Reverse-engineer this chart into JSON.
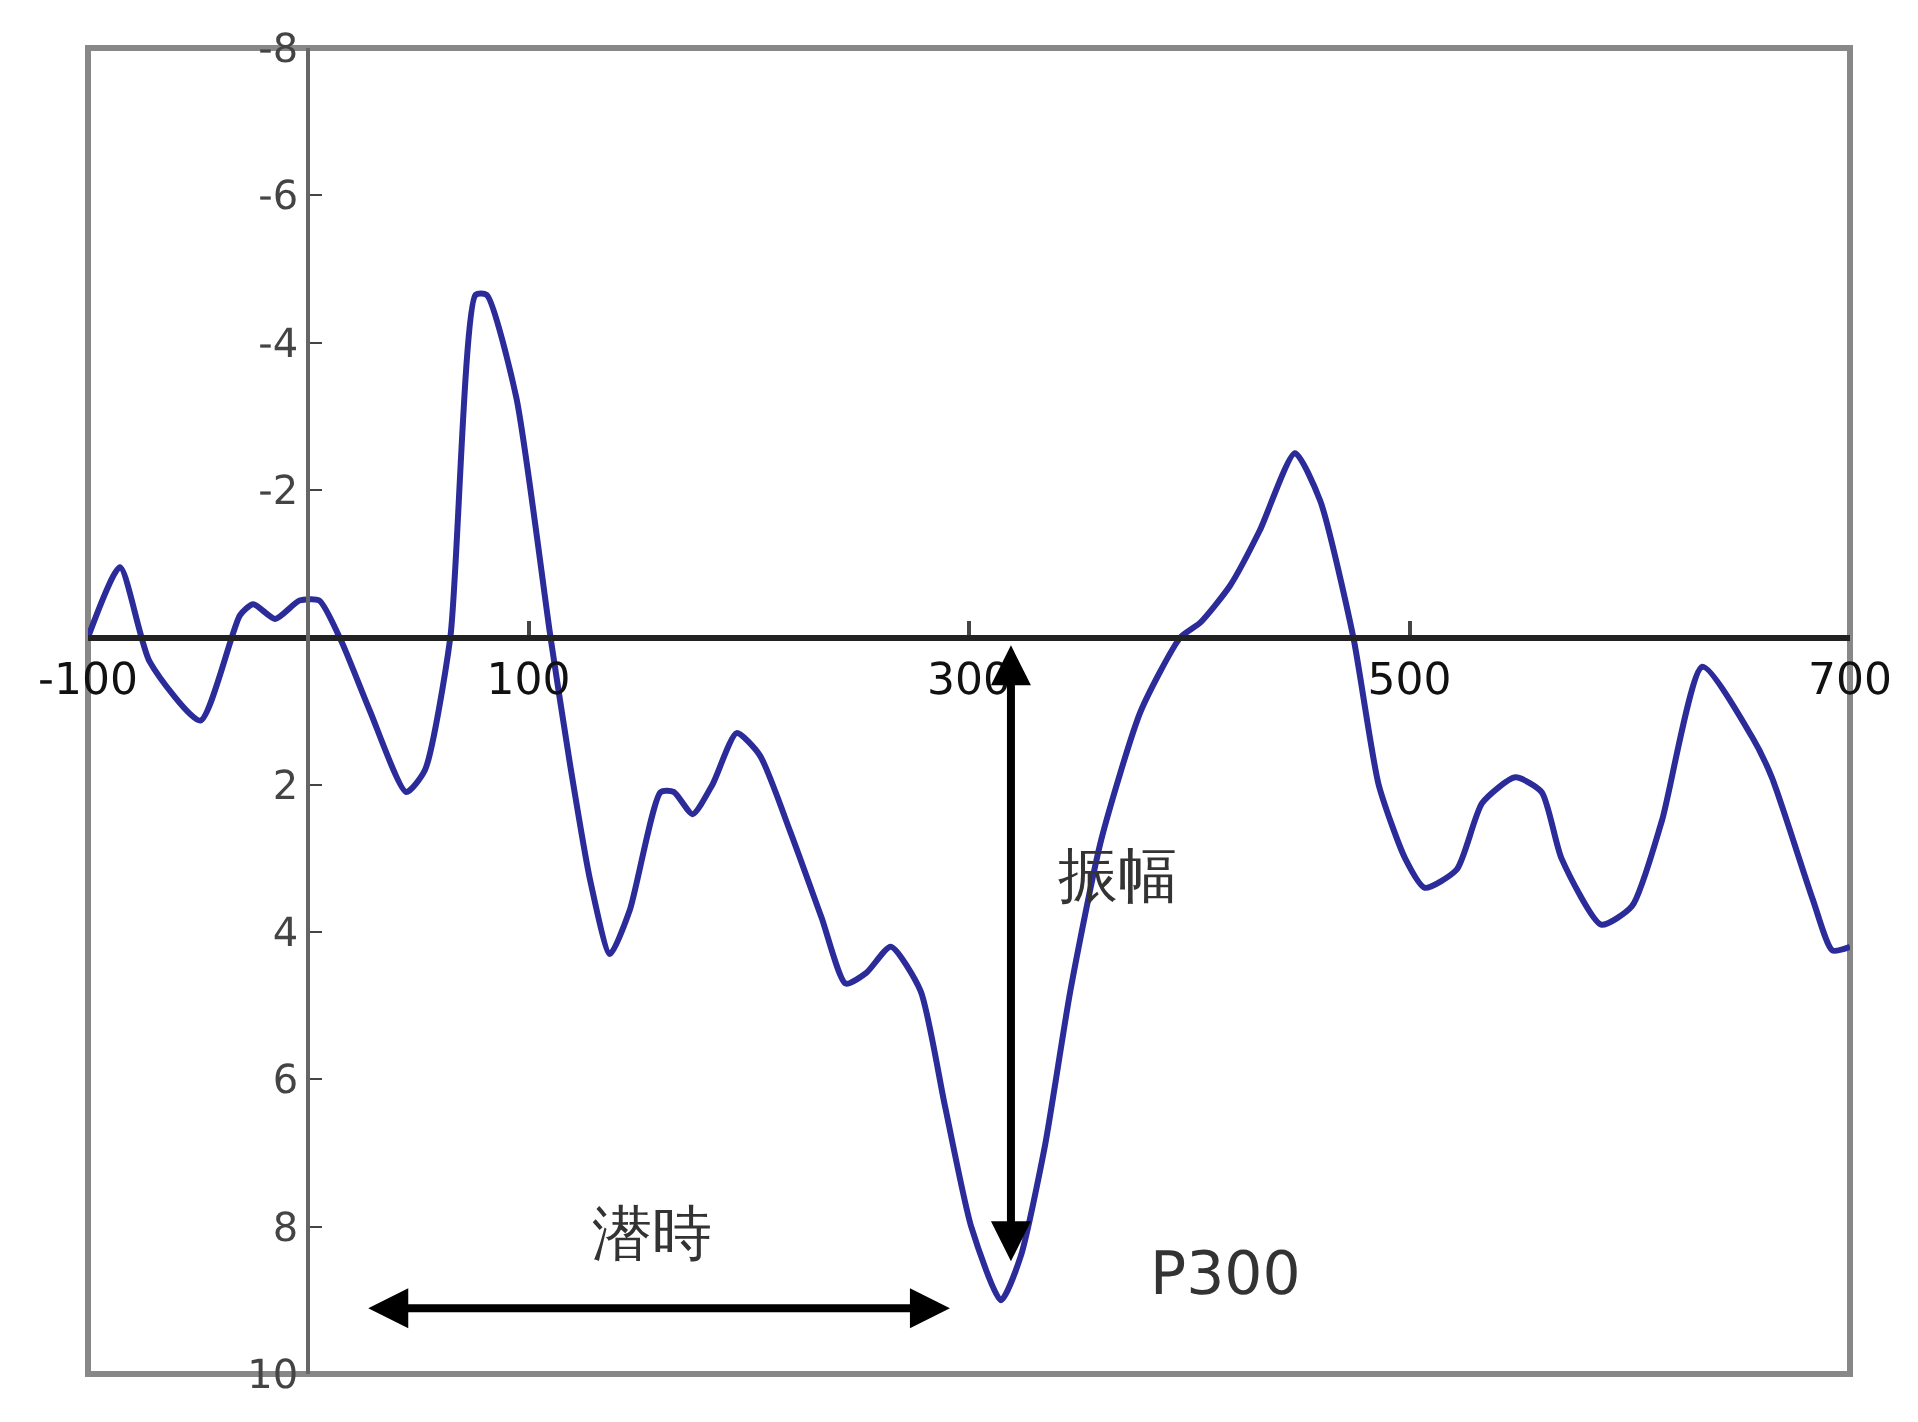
{
  "chart_data": {
    "type": "line",
    "x": [
      -100,
      -85.5,
      -72,
      -49,
      -31,
      -25,
      -15,
      -4,
      5,
      15,
      28,
      44.5,
      53,
      64.5,
      76,
      81,
      94.5,
      110,
      119,
      128,
      137,
      146,
      160,
      166,
      174.5,
      183.5,
      194.5,
      205,
      219,
      233,
      244,
      253.5,
      264.5,
      278,
      289,
      301,
      314.5,
      323.5,
      334.5,
      346,
      360,
      378,
      396,
      405,
      418.5,
      432,
      448,
      459.5,
      474.5,
      486,
      498,
      507,
      521.5,
      533,
      548,
      560,
      569,
      587,
      601,
      614.5,
      633,
      655.5,
      664.5,
      683,
      692,
      700
    ],
    "series": [
      {
        "color": "#2b2b9a",
        "values": [
          0,
          -0.95,
          0.33,
          1.13,
          -0.3,
          -0.45,
          -0.25,
          -0.5,
          -0.5,
          0.05,
          1,
          2.1,
          1.8,
          0,
          -4.65,
          -4.65,
          -3.25,
          0,
          1.75,
          3.3,
          4.3,
          3.7,
          2.1,
          2.1,
          2.4,
          2.0,
          1.3,
          1.6,
          2.65,
          3.8,
          4.7,
          4.55,
          4.2,
          4.8,
          6.35,
          8.0,
          9.0,
          8.4,
          6.9,
          4.8,
          2.75,
          1,
          0,
          -0.2,
          -0.7,
          -1.45,
          -2.5,
          -1.85,
          0,
          2,
          3,
          3.4,
          3.15,
          2.25,
          1.9,
          2.1,
          3.0,
          3.9,
          3.65,
          2.5,
          0.4,
          1.35,
          1.9,
          3.55,
          4.25,
          4.2
        ]
      }
    ],
    "xlim": [
      -100,
      700
    ],
    "xticks": [
      -100,
      100,
      300,
      500,
      700
    ],
    "ylim": [
      10,
      -8
    ],
    "yticks": [
      -8,
      -6,
      -4,
      -2,
      2,
      4,
      6,
      8,
      10
    ],
    "grid": false,
    "marker": "none",
    "line_style": "solid",
    "annotations": [
      "振幅",
      "潜時",
      "P300"
    ]
  }
}
